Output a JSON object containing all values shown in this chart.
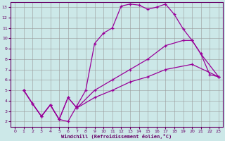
{
  "xlabel": "Windchill (Refroidissement éolien,°C)",
  "background_color": "#cce8e8",
  "grid_color": "#999999",
  "line_color": "#990099",
  "xlim": [
    -0.5,
    23.5
  ],
  "ylim": [
    1.5,
    13.5
  ],
  "xticks": [
    0,
    1,
    2,
    3,
    4,
    5,
    6,
    7,
    8,
    9,
    10,
    11,
    12,
    13,
    14,
    15,
    16,
    17,
    18,
    19,
    20,
    21,
    22,
    23
  ],
  "yticks": [
    2,
    3,
    4,
    5,
    6,
    7,
    8,
    9,
    10,
    11,
    12,
    13
  ],
  "line1_x": [
    1,
    2,
    3,
    4,
    5,
    6,
    7,
    8,
    9,
    10,
    11,
    12,
    13,
    14,
    15,
    16,
    17,
    18,
    19,
    20,
    21,
    22,
    23
  ],
  "line1_y": [
    5.0,
    3.7,
    2.5,
    3.6,
    2.2,
    2.0,
    3.5,
    5.0,
    9.5,
    10.5,
    11.0,
    13.1,
    13.3,
    13.2,
    12.8,
    13.0,
    13.3,
    12.3,
    10.9,
    9.8,
    8.5,
    6.5,
    6.3
  ],
  "line2_x": [
    1,
    2,
    3,
    4,
    5,
    6,
    7,
    9,
    11,
    13,
    15,
    17,
    19,
    20,
    21,
    23
  ],
  "line2_y": [
    5.0,
    3.7,
    2.5,
    3.6,
    2.2,
    4.3,
    3.3,
    5.0,
    6.0,
    7.0,
    8.0,
    9.3,
    9.8,
    9.8,
    8.5,
    6.3
  ],
  "line3_x": [
    1,
    2,
    3,
    4,
    5,
    6,
    7,
    9,
    11,
    13,
    15,
    17,
    20,
    23
  ],
  "line3_y": [
    5.0,
    3.7,
    2.5,
    3.6,
    2.2,
    4.3,
    3.3,
    4.3,
    5.0,
    5.8,
    6.3,
    7.0,
    7.5,
    6.3
  ]
}
